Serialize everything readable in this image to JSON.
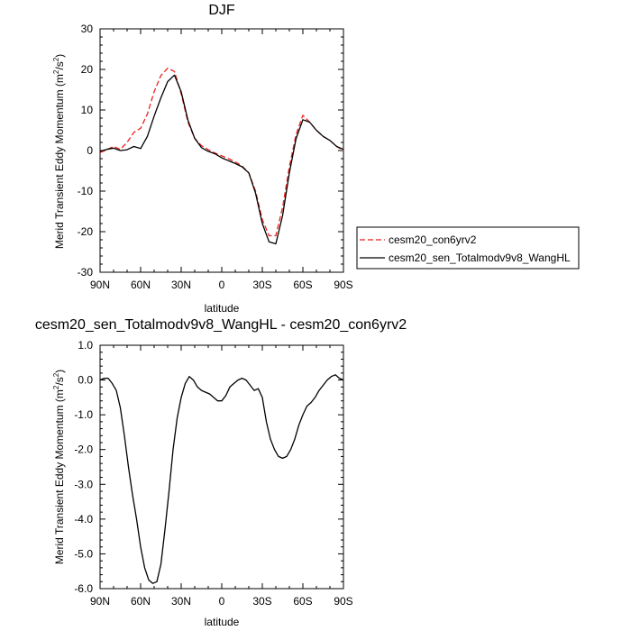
{
  "chart_data": [
    {
      "type": "line",
      "title": "DJF",
      "xlabel": "latitude",
      "ylabel": "Merid Transient Eddy Momentum (m²/s²)",
      "ylabel_main": "Merid Transient Eddy Momentum (m",
      "ylabel_unit_mid": "/s",
      "ylabel_sup": "2",
      "ylabel_close": ")",
      "x_tick_labels": [
        "90N",
        "60N",
        "30N",
        "0",
        "30S",
        "60S",
        "90S"
      ],
      "x_ticks": [
        90,
        60,
        30,
        0,
        -30,
        -60,
        -90
      ],
      "xlim": [
        90,
        -90
      ],
      "ylim": [
        -30,
        30
      ],
      "y_ticks": [
        -30,
        -20,
        -10,
        0,
        10,
        20,
        30
      ],
      "y_tick_labels": [
        "-30",
        "-20",
        "-10",
        "0",
        "10",
        "20",
        "30"
      ],
      "series": [
        {
          "name": "cesm20_con6yrv2",
          "color": "#e8231d",
          "dash": "dashed",
          "x": [
            90,
            85,
            80,
            75,
            70,
            65,
            60,
            55,
            50,
            45,
            40,
            35,
            30,
            25,
            20,
            15,
            10,
            5,
            0,
            -5,
            -10,
            -15,
            -20,
            -25,
            -30,
            -35,
            -40,
            -45,
            -50,
            -55,
            -60,
            -65,
            -70,
            -75,
            -80,
            -85,
            -90
          ],
          "y": [
            -0.5,
            0.2,
            1.0,
            0.3,
            2.0,
            4.5,
            5.5,
            9.0,
            14.5,
            18.5,
            20.3,
            19.5,
            14.0,
            7.0,
            3.0,
            1.2,
            0.2,
            -0.6,
            -1.3,
            -2.0,
            -2.8,
            -3.8,
            -5.5,
            -10.0,
            -17.0,
            -21.0,
            -21.0,
            -14.0,
            -4.0,
            4.0,
            8.7,
            7.0,
            5.0,
            3.5,
            2.5,
            1.0,
            0.0
          ]
        },
        {
          "name": "cesm20_sen_Totalmodv9v8_WangHL",
          "color": "#000000",
          "dash": "solid",
          "x": [
            90,
            85,
            80,
            75,
            70,
            65,
            60,
            55,
            50,
            45,
            40,
            35,
            30,
            25,
            20,
            15,
            10,
            5,
            0,
            -5,
            -10,
            -15,
            -20,
            -25,
            -30,
            -35,
            -40,
            -45,
            -50,
            -55,
            -60,
            -65,
            -70,
            -75,
            -80,
            -85,
            -90
          ],
          "y": [
            -0.2,
            0.3,
            0.6,
            0.0,
            0.2,
            1.0,
            0.5,
            3.5,
            8.5,
            13.0,
            17.0,
            18.6,
            14.5,
            7.5,
            3.0,
            0.7,
            -0.2,
            -0.8,
            -1.8,
            -2.5,
            -3.2,
            -4.0,
            -5.5,
            -10.5,
            -18.0,
            -22.5,
            -23.0,
            -16.0,
            -5.5,
            3.0,
            7.6,
            7.0,
            5.0,
            3.5,
            2.5,
            1.0,
            0.3
          ]
        }
      ],
      "legend": [
        "cesm20_con6yrv2",
        "cesm20_sen_Totalmodv9v8_WangHL"
      ],
      "legend_position": "right"
    },
    {
      "type": "line",
      "title": "cesm20_sen_Totalmodv9v8_WangHL - cesm20_con6yrv2",
      "xlabel": "latitude",
      "ylabel": "Merid Transient Eddy Momentum (m²/s²)",
      "ylabel_main": "Merid Transient Eddy Momentum (m",
      "ylabel_unit_mid": "/s",
      "ylabel_sup": "2",
      "ylabel_close": ")",
      "x_tick_labels": [
        "90N",
        "60N",
        "30N",
        "0",
        "30S",
        "60S",
        "90S"
      ],
      "x_ticks": [
        90,
        60,
        30,
        0,
        -30,
        -60,
        -90
      ],
      "xlim": [
        90,
        -90
      ],
      "ylim": [
        -6.0,
        1.0
      ],
      "y_ticks": [
        -6,
        -5,
        -4,
        -3,
        -2,
        -1,
        0,
        1
      ],
      "y_tick_labels": [
        "-6.0",
        "-5.0",
        "-4.0",
        "-3.0",
        "-2.0",
        "-1.0",
        "0.0",
        "1.0"
      ],
      "series": [
        {
          "name": "",
          "color": "#000000",
          "dash": "solid",
          "x": [
            90,
            87,
            84,
            81,
            78,
            75,
            72,
            69,
            66,
            63,
            60,
            57,
            54,
            51,
            48,
            45,
            42,
            39,
            36,
            33,
            30,
            27,
            24,
            21,
            18,
            15,
            12,
            9,
            6,
            3,
            0,
            -3,
            -6,
            -9,
            -12,
            -15,
            -18,
            -21,
            -24,
            -27,
            -30,
            -33,
            -36,
            -39,
            -42,
            -45,
            -48,
            -51,
            -54,
            -57,
            -60,
            -63,
            -66,
            -69,
            -72,
            -75,
            -78,
            -81,
            -84,
            -87,
            -90
          ],
          "y": [
            0.0,
            0.05,
            0.05,
            -0.1,
            -0.3,
            -0.8,
            -1.6,
            -2.5,
            -3.3,
            -4.0,
            -4.8,
            -5.4,
            -5.75,
            -5.85,
            -5.8,
            -5.3,
            -4.3,
            -3.2,
            -2.0,
            -1.1,
            -0.5,
            -0.1,
            0.1,
            0.0,
            -0.2,
            -0.3,
            -0.35,
            -0.4,
            -0.5,
            -0.6,
            -0.6,
            -0.45,
            -0.2,
            -0.1,
            0.0,
            0.05,
            0.0,
            -0.15,
            -0.3,
            -0.25,
            -0.5,
            -1.2,
            -1.7,
            -2.0,
            -2.2,
            -2.25,
            -2.2,
            -2.0,
            -1.7,
            -1.3,
            -1.0,
            -0.75,
            -0.65,
            -0.5,
            -0.3,
            -0.15,
            0.0,
            0.1,
            0.15,
            0.05,
            0.0
          ]
        }
      ]
    }
  ]
}
